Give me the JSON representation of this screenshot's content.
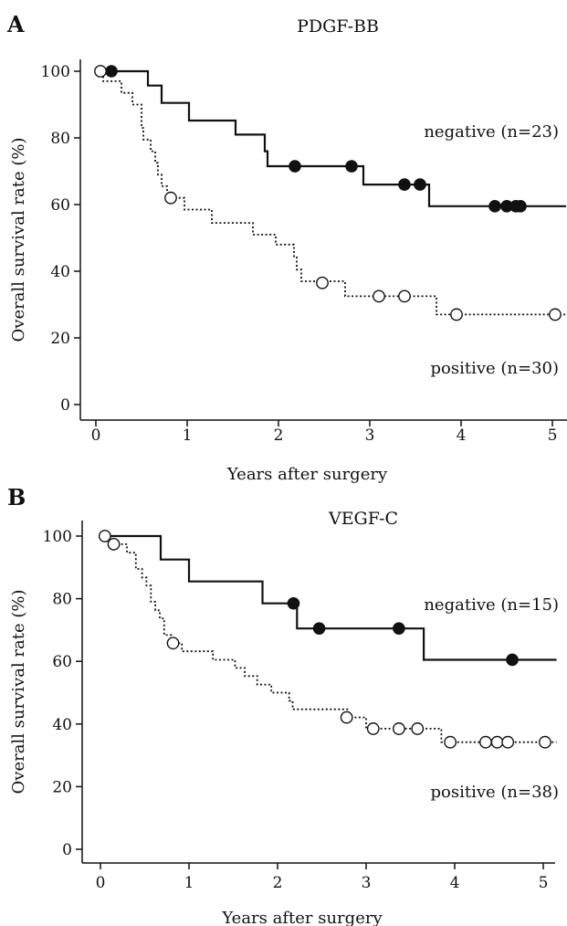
{
  "chart_data": [
    {
      "type": "line",
      "panel": "A",
      "title": "PDGF-BB",
      "xlabel": "Years after surgery",
      "ylabel": "Overall survival rate (%)",
      "xlim": [
        0,
        5.15
      ],
      "ylim": [
        0,
        100
      ],
      "xticks": [
        "0",
        "1",
        "2",
        "3",
        "4",
        "5"
      ],
      "yticks": [
        "0",
        "20",
        "40",
        "60",
        "80",
        "100"
      ],
      "series": [
        {
          "name": "negative (n=23)",
          "style": "solid",
          "steps": [
            [
              0,
              100
            ],
            [
              0.57,
              95.7
            ],
            [
              0.72,
              90.5
            ],
            [
              1.02,
              85.2
            ],
            [
              1.53,
              81.0
            ],
            [
              1.85,
              76.0
            ],
            [
              1.88,
              71.5
            ],
            [
              2.93,
              66.0
            ],
            [
              3.65,
              59.5
            ],
            [
              5.15,
              59.5
            ]
          ],
          "censored": [
            [
              0.17,
              100
            ],
            [
              2.18,
              71.5
            ],
            [
              2.8,
              71.5
            ],
            [
              3.38,
              66.0
            ],
            [
              3.55,
              66.0
            ],
            [
              4.37,
              59.5
            ],
            [
              4.5,
              59.5
            ],
            [
              4.6,
              59.5
            ],
            [
              4.65,
              59.5
            ]
          ]
        },
        {
          "name": "positive (n=30)",
          "style": "dotted",
          "steps": [
            [
              0,
              100
            ],
            [
              0.08,
              97
            ],
            [
              0.28,
              93.5
            ],
            [
              0.4,
              90
            ],
            [
              0.5,
              83
            ],
            [
              0.52,
              79.5
            ],
            [
              0.6,
              76
            ],
            [
              0.65,
              72.5
            ],
            [
              0.68,
              69
            ],
            [
              0.72,
              65.5
            ],
            [
              0.78,
              62
            ],
            [
              0.97,
              58.5
            ],
            [
              1.27,
              54.5
            ],
            [
              1.72,
              51
            ],
            [
              1.97,
              48
            ],
            [
              2.17,
              44.5
            ],
            [
              2.2,
              40.5
            ],
            [
              2.25,
              37
            ],
            [
              2.73,
              32.5
            ],
            [
              3.73,
              27
            ],
            [
              5.15,
              27
            ]
          ],
          "censored": [
            [
              0.05,
              100
            ],
            [
              0.82,
              62
            ],
            [
              2.48,
              36.5
            ],
            [
              3.1,
              32.5
            ],
            [
              3.38,
              32.5
            ],
            [
              3.95,
              27
            ],
            [
              5.03,
              27
            ]
          ]
        }
      ]
    },
    {
      "type": "line",
      "panel": "B",
      "title": "VEGF-C",
      "xlabel": "Years after surgery",
      "ylabel": "Overall survival rate (%)",
      "xlim": [
        0,
        5.15
      ],
      "ylim": [
        0,
        100
      ],
      "xticks": [
        "0",
        "1",
        "2",
        "3",
        "4",
        "5"
      ],
      "yticks": [
        "0",
        "20",
        "40",
        "60",
        "80",
        "100"
      ],
      "series": [
        {
          "name": "negative (n=15)",
          "style": "solid",
          "steps": [
            [
              0,
              100
            ],
            [
              0.68,
              92.5
            ],
            [
              1.0,
              85.5
            ],
            [
              1.83,
              78.5
            ],
            [
              2.22,
              70.5
            ],
            [
              3.65,
              60.5
            ],
            [
              5.15,
              60.5
            ]
          ],
          "censored": [
            [
              2.18,
              78.5
            ],
            [
              2.47,
              70.5
            ],
            [
              3.37,
              70.5
            ],
            [
              4.65,
              60.5
            ]
          ]
        },
        {
          "name": "positive (n=38)",
          "style": "dotted",
          "steps": [
            [
              0,
              100
            ],
            [
              0.15,
              97.4
            ],
            [
              0.3,
              94.7
            ],
            [
              0.4,
              89.5
            ],
            [
              0.47,
              86.8
            ],
            [
              0.52,
              84.2
            ],
            [
              0.57,
              79
            ],
            [
              0.62,
              76.3
            ],
            [
              0.67,
              73.7
            ],
            [
              0.72,
              68.4
            ],
            [
              0.8,
              65.8
            ],
            [
              0.92,
              63.2
            ],
            [
              1.27,
              60.5
            ],
            [
              1.52,
              57.9
            ],
            [
              1.63,
              55.3
            ],
            [
              1.77,
              52.6
            ],
            [
              1.93,
              50
            ],
            [
              2.13,
              47.4
            ],
            [
              2.17,
              44.7
            ],
            [
              2.8,
              42.1
            ],
            [
              3.0,
              38.5
            ],
            [
              3.85,
              34.2
            ],
            [
              5.15,
              34.2
            ]
          ],
          "censored": [
            [
              0.05,
              100
            ],
            [
              0.15,
              97.4
            ],
            [
              0.82,
              65.8
            ],
            [
              2.78,
              42.1
            ],
            [
              3.08,
              38.5
            ],
            [
              3.37,
              38.5
            ],
            [
              3.58,
              38.5
            ],
            [
              3.95,
              34.2
            ],
            [
              4.35,
              34.2
            ],
            [
              4.48,
              34.2
            ],
            [
              4.6,
              34.2
            ],
            [
              5.02,
              34.2
            ]
          ]
        }
      ]
    }
  ]
}
